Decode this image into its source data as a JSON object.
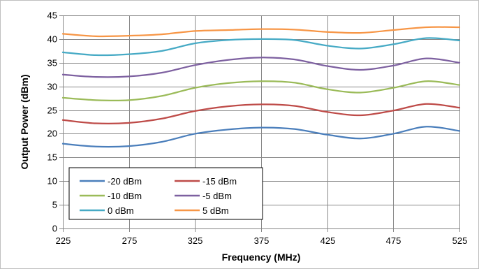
{
  "chart_data": {
    "type": "line",
    "title": "",
    "xlabel": "Frequency (MHz)",
    "ylabel": "Output Power (dBm)",
    "xlim": [
      225,
      525
    ],
    "ylim": [
      0,
      45
    ],
    "xticks": [
      225,
      275,
      325,
      375,
      425,
      475,
      525
    ],
    "yticks": [
      0,
      5,
      10,
      15,
      20,
      25,
      30,
      35,
      40,
      45
    ],
    "grid": true,
    "legend_position": "bottom-left",
    "series": [
      {
        "name": "-20 dBm",
        "color": "#4a7ebb",
        "x": [
          225,
          250,
          275,
          300,
          325,
          350,
          375,
          400,
          425,
          450,
          475,
          500,
          525
        ],
        "y": [
          17.9,
          17.3,
          17.4,
          18.3,
          20.0,
          20.9,
          21.3,
          21.0,
          19.8,
          19.0,
          20.0,
          21.5,
          20.6
        ]
      },
      {
        "name": "-15 dBm",
        "color": "#be4b48",
        "x": [
          225,
          250,
          275,
          300,
          325,
          350,
          375,
          400,
          425,
          450,
          475,
          500,
          525
        ],
        "y": [
          22.9,
          22.2,
          22.3,
          23.2,
          24.8,
          25.8,
          26.2,
          25.9,
          24.6,
          23.9,
          24.9,
          26.3,
          25.5
        ]
      },
      {
        "name": "-10 dBm",
        "color": "#9bbb59",
        "x": [
          225,
          250,
          275,
          300,
          325,
          350,
          375,
          400,
          425,
          450,
          475,
          500,
          525
        ],
        "y": [
          27.6,
          27.1,
          27.1,
          28.0,
          29.7,
          30.7,
          31.1,
          30.8,
          29.4,
          28.7,
          29.7,
          31.1,
          30.3
        ]
      },
      {
        "name": "-5 dBm",
        "color": "#7d60a0",
        "x": [
          225,
          250,
          275,
          300,
          325,
          350,
          375,
          400,
          425,
          450,
          475,
          500,
          525
        ],
        "y": [
          32.5,
          32.0,
          32.1,
          32.9,
          34.5,
          35.6,
          36.1,
          35.7,
          34.3,
          33.5,
          34.4,
          35.9,
          35.0
        ]
      },
      {
        "name": "0 dBm",
        "color": "#46aac5",
        "x": [
          225,
          250,
          275,
          300,
          325,
          350,
          375,
          400,
          425,
          450,
          475,
          500,
          525
        ],
        "y": [
          37.2,
          36.6,
          36.8,
          37.5,
          39.1,
          39.8,
          40.0,
          39.8,
          38.6,
          38.0,
          38.9,
          40.2,
          39.7
        ]
      },
      {
        "name": "5 dBm",
        "color": "#f79646",
        "x": [
          225,
          250,
          275,
          300,
          325,
          350,
          375,
          400,
          425,
          450,
          475,
          500,
          525
        ],
        "y": [
          41.1,
          40.6,
          40.7,
          41.0,
          41.7,
          41.9,
          42.1,
          42.0,
          41.5,
          41.3,
          41.9,
          42.5,
          42.5
        ]
      }
    ]
  }
}
